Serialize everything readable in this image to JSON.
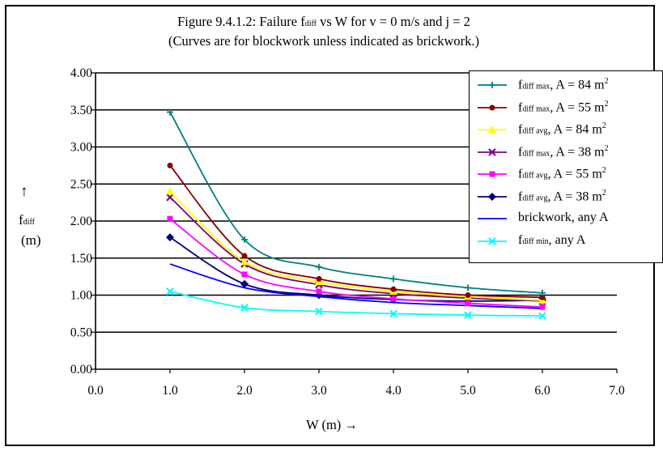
{
  "title": {
    "line1_pre": "Figure 9.4.1.2:  Failure f",
    "line1_sub": "diff",
    "line1_post": " vs W for v = 0 m/s and j = 2",
    "line2": "(Curves are for blockwork unless indicated as brickwork.)"
  },
  "axes": {
    "y_arrow": "↑",
    "y_f": "f",
    "y_sub": "diff",
    "y_unit": "(m)",
    "x_label": "W (m) →"
  },
  "chart_data": {
    "type": "line",
    "xlim": [
      0.0,
      7.0
    ],
    "ylim": [
      0.0,
      4.0
    ],
    "x_ticks": [
      0.0,
      1.0,
      2.0,
      3.0,
      4.0,
      5.0,
      6.0,
      7.0
    ],
    "x_tick_labels": [
      "0.0",
      "1.0",
      "2.0",
      "3.0",
      "4.0",
      "5.0",
      "6.0",
      "7.0"
    ],
    "y_ticks": [
      0.0,
      0.5,
      1.0,
      1.5,
      2.0,
      2.5,
      3.0,
      3.5,
      4.0
    ],
    "y_tick_labels": [
      "0.00",
      "0.50",
      "1.00",
      "1.50",
      "2.00",
      "2.50",
      "3.00",
      "3.50",
      "4.00"
    ],
    "grid": "horizontal",
    "legend_position": "top-right",
    "x": [
      1,
      2,
      3,
      4,
      5,
      6
    ],
    "series": [
      {
        "name": "f diff max, A = 84 m2",
        "label_sub": "diff max",
        "label_post": ", A = 84 m",
        "label_sup": "2",
        "color": "#008080",
        "marker": "plus",
        "values": [
          3.47,
          1.75,
          1.38,
          1.22,
          1.1,
          1.03
        ]
      },
      {
        "name": "f diff max, A = 55 m2",
        "label_sub": "diff max",
        "label_post": ", A = 55 m",
        "label_sup": "2",
        "color": "#8b0000",
        "marker": "circle",
        "values": [
          2.75,
          1.53,
          1.22,
          1.08,
          1.0,
          0.97
        ]
      },
      {
        "name": "f diff avg, A = 84 m2",
        "label_sub": "diff avg",
        "label_post": ", A = 84 m",
        "label_sup": "2",
        "color": "#ffff00",
        "marker": "triangle",
        "values": [
          2.4,
          1.45,
          1.18,
          1.05,
          0.98,
          0.93
        ]
      },
      {
        "name": "f diff max, A = 38 m2",
        "label_sub": "diff max",
        "label_post": ", A = 38 m",
        "label_sup": "2",
        "color": "#800080",
        "marker": "x",
        "values": [
          2.32,
          1.42,
          1.14,
          1.02,
          0.96,
          0.92
        ]
      },
      {
        "name": "f diff avg, A = 55 m2",
        "label_sub": "diff avg",
        "label_post": ", A = 55 m",
        "label_sup": "2",
        "color": "#ff00ff",
        "marker": "square",
        "values": [
          2.03,
          1.28,
          1.05,
          0.95,
          0.89,
          0.84
        ]
      },
      {
        "name": "f diff avg, A = 38 m2",
        "label_sub": "diff avg",
        "label_post": ", A = 38 m",
        "label_sup": "2",
        "color": "#000080",
        "marker": "diamond",
        "values": [
          1.78,
          1.15,
          1.0,
          0.94,
          0.92,
          0.93
        ]
      },
      {
        "name": "brickwork, any A",
        "label_sub": "",
        "label_post": "brickwork, any A",
        "label_sup": "",
        "color": "#0000ff",
        "marker": "none",
        "values": [
          1.42,
          1.1,
          0.98,
          0.9,
          0.86,
          0.82
        ]
      },
      {
        "name": "f diff min, any A",
        "label_sub": "diff min",
        "label_post": ", any A",
        "label_sup": "",
        "color": "#00ffff",
        "marker": "x",
        "values": [
          1.05,
          0.83,
          0.78,
          0.75,
          0.73,
          0.72
        ]
      }
    ]
  }
}
